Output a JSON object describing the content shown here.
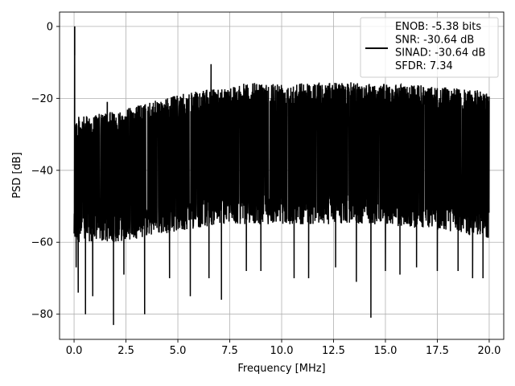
{
  "chart_data": {
    "type": "line",
    "xlabel": "Frequency [MHz]",
    "ylabel": "PSD [dB]",
    "xlim": [
      -0.7,
      20.7
    ],
    "ylim": [
      -87,
      4
    ],
    "xticks": [
      0.0,
      2.5,
      5.0,
      7.5,
      10.0,
      12.5,
      15.0,
      17.5,
      20.0
    ],
    "xtick_labels": [
      "0.0",
      "2.5",
      "5.0",
      "7.5",
      "10.0",
      "12.5",
      "15.0",
      "17.5",
      "20.0"
    ],
    "yticks": [
      0,
      -20,
      -40,
      -60,
      -80
    ],
    "ytick_labels": [
      "0",
      "−20",
      "−40",
      "−60",
      "−80"
    ],
    "grid": true,
    "legend_placement": "upper-right",
    "series": [
      {
        "name": "ENOB: -5.38 bits\nSNR: -30.64 dB\nSINAD: -30.64 dB\nSFDR: 7.34",
        "legend_lines": [
          "ENOB: -5.38 bits",
          "SNR: -30.64 dB",
          "SINAD: -30.64 dB",
          "SFDR: 7.34"
        ],
        "color": "#000000",
        "envelope": {
          "x": [
            0.0,
            0.5,
            1.0,
            2.0,
            3.0,
            4.0,
            5.0,
            6.0,
            7.0,
            8.0,
            9.0,
            10.0,
            11.0,
            12.0,
            13.0,
            14.0,
            15.0,
            16.0,
            17.0,
            18.0,
            19.0,
            20.0
          ],
          "upper": [
            -25,
            -25,
            -24.5,
            -23.5,
            -22,
            -20.5,
            -19,
            -18,
            -17,
            -16,
            -15.5,
            -15.5,
            -15.5,
            -15.5,
            -15.5,
            -15.5,
            -16,
            -16,
            -16.5,
            -17,
            -17.5,
            -18
          ],
          "lower": [
            -60,
            -60,
            -60,
            -60,
            -59,
            -58,
            -57,
            -56,
            -55,
            -55,
            -55,
            -55,
            -55,
            -55,
            -55,
            -55,
            -55,
            -56,
            -56,
            -57,
            -58,
            -59
          ]
        },
        "peaks": [
          {
            "x": 0.03,
            "y": 0
          },
          {
            "x": 1.6,
            "y": -21
          },
          {
            "x": 6.6,
            "y": -10.5
          }
        ],
        "dips": [
          {
            "x": 0.1,
            "y": -67
          },
          {
            "x": 0.2,
            "y": -74
          },
          {
            "x": 0.55,
            "y": -80
          },
          {
            "x": 0.9,
            "y": -75
          },
          {
            "x": 1.9,
            "y": -83
          },
          {
            "x": 2.4,
            "y": -69
          },
          {
            "x": 3.4,
            "y": -80
          },
          {
            "x": 4.6,
            "y": -70
          },
          {
            "x": 5.6,
            "y": -75
          },
          {
            "x": 6.5,
            "y": -70
          },
          {
            "x": 7.1,
            "y": -76
          },
          {
            "x": 8.3,
            "y": -68
          },
          {
            "x": 9.0,
            "y": -68
          },
          {
            "x": 10.6,
            "y": -70
          },
          {
            "x": 11.3,
            "y": -70
          },
          {
            "x": 12.6,
            "y": -67
          },
          {
            "x": 13.6,
            "y": -71
          },
          {
            "x": 14.3,
            "y": -81
          },
          {
            "x": 15.0,
            "y": -68
          },
          {
            "x": 15.7,
            "y": -69
          },
          {
            "x": 16.5,
            "y": -67
          },
          {
            "x": 17.5,
            "y": -68
          },
          {
            "x": 18.5,
            "y": -68
          },
          {
            "x": 19.2,
            "y": -70
          },
          {
            "x": 19.7,
            "y": -70
          }
        ]
      }
    ]
  }
}
